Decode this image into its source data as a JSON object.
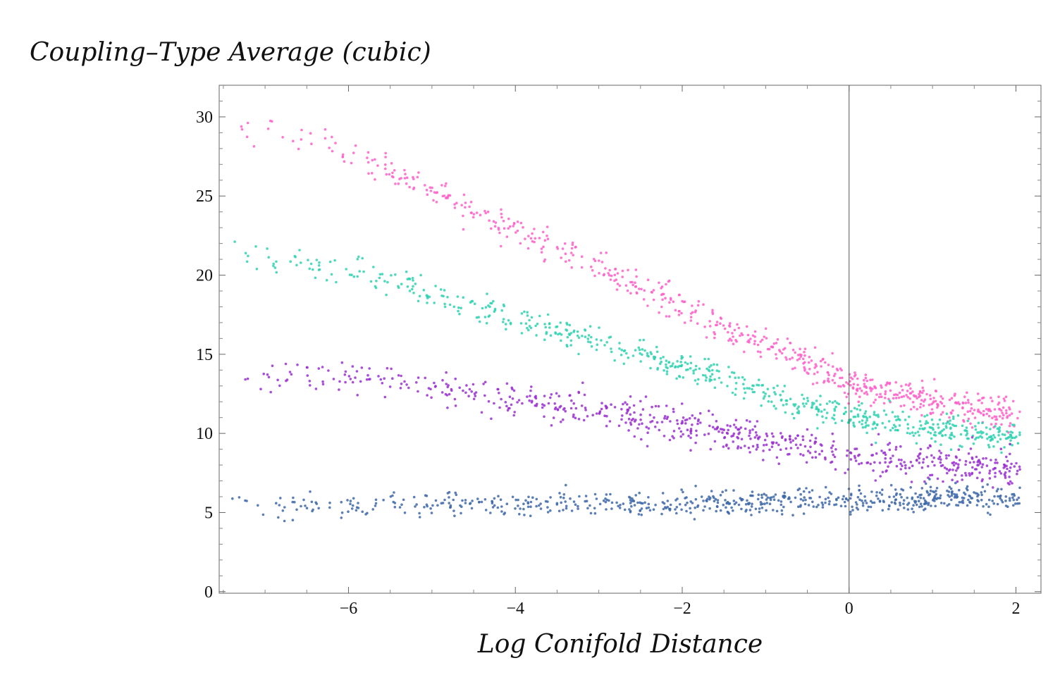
{
  "chart_data": {
    "type": "scatter",
    "title": "",
    "xlabel": "Log Conifold Distance",
    "ylabel": "Coupling–Type Average (cubic)",
    "xlim": [
      -7.55,
      2.3
    ],
    "ylim": [
      -0.1,
      32
    ],
    "x_ticks": [
      -6,
      -4,
      -2,
      0,
      2
    ],
    "x_tick_labels": [
      "−6",
      "−4",
      "−2",
      "0",
      "2"
    ],
    "y_ticks": [
      0,
      5,
      10,
      15,
      20,
      25,
      30
    ],
    "y_tick_labels": [
      "0",
      "5",
      "10",
      "15",
      "20",
      "25",
      "30"
    ],
    "reference_line_x": 0,
    "grid": false,
    "legend": "none",
    "series": [
      {
        "color": "#ff5fc8",
        "trend": {
          "x": [
            -7.5,
            -6,
            -4,
            -2,
            0,
            2
          ],
          "y": [
            29.8,
            27.8,
            22.8,
            18.0,
            13.2,
            11.0
          ]
        },
        "spread": 0.9
      },
      {
        "color": "#2fd2b0",
        "trend": {
          "x": [
            -7.5,
            -6,
            -4,
            -2,
            0,
            2
          ],
          "y": [
            21.5,
            20.4,
            17.3,
            14.2,
            11.0,
            9.7
          ]
        },
        "spread": 0.8
      },
      {
        "color": "#9a2fd0",
        "trend": {
          "x": [
            -7.5,
            -6,
            -4,
            -2,
            0,
            2
          ],
          "y": [
            14.0,
            13.6,
            12.2,
            10.6,
            8.6,
            7.8
          ]
        },
        "spread": 1.0
      },
      {
        "color": "#3d67a8",
        "trend": {
          "x": [
            -7.5,
            -6,
            -4,
            -2,
            0,
            2
          ],
          "y": [
            5.6,
            5.5,
            5.5,
            5.6,
            5.8,
            5.9
          ]
        },
        "spread": 0.7
      }
    ]
  }
}
